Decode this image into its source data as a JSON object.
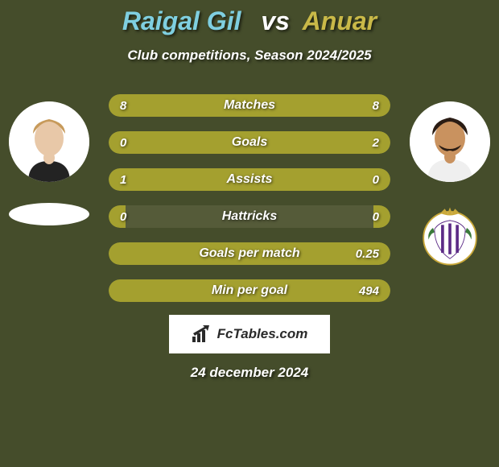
{
  "background_color": "#454d2b",
  "title": {
    "player1": "Raigal Gil",
    "vs": "vs",
    "player2": "Anuar",
    "player1_color": "#7fcfe0",
    "vs_color": "#ffffff",
    "player2_color": "#c9b948"
  },
  "subtitle": "Club competitions, Season 2024/2025",
  "bars": {
    "track_color": "#555b39",
    "left_color": "#a4a02f",
    "right_color": "#a4a02f",
    "items": [
      {
        "label": "Matches",
        "left_val": "8",
        "right_val": "8",
        "left_pct": 50,
        "right_pct": 50
      },
      {
        "label": "Goals",
        "left_val": "0",
        "right_val": "2",
        "left_pct": 6,
        "right_pct": 94
      },
      {
        "label": "Assists",
        "left_val": "1",
        "right_val": "0",
        "left_pct": 94,
        "right_pct": 6
      },
      {
        "label": "Hattricks",
        "left_val": "0",
        "right_val": "0",
        "left_pct": 6,
        "right_pct": 6
      },
      {
        "label": "Goals per match",
        "left_val": "",
        "right_val": "0.25",
        "left_pct": 6,
        "right_pct": 94
      },
      {
        "label": "Min per goal",
        "left_val": "",
        "right_val": "494",
        "left_pct": 6,
        "right_pct": 94
      }
    ]
  },
  "footer_brand": "FcTables.com",
  "date": "24 december 2024",
  "right_club_crest": {
    "bg": "#ffffff",
    "stripes": [
      "#5b2a86",
      "#5b2a86",
      "#5b2a86"
    ],
    "crown": "#caa93a"
  }
}
